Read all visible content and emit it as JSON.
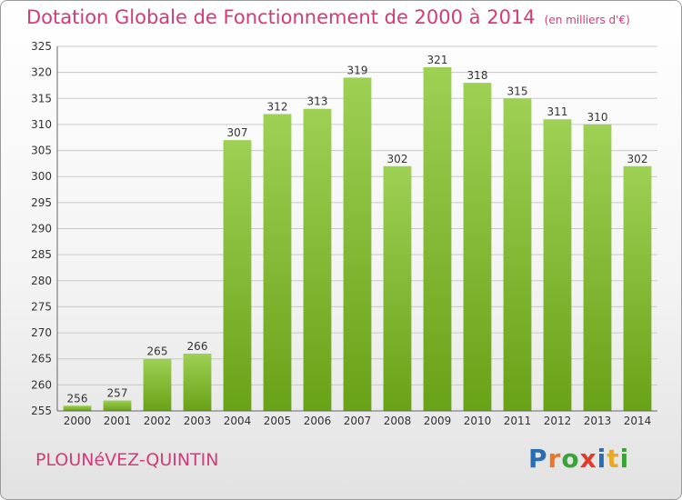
{
  "header": {
    "title": "Dotation Globale de Fonctionnement de 2000 à 2014",
    "unit": "(en milliers d'€)"
  },
  "footer": {
    "commune": "PLOUNéVEZ-QUINTIN",
    "logo": {
      "letters": [
        "P",
        "r",
        "o",
        "x",
        "i",
        "t",
        "i"
      ],
      "colors": [
        "#2b6db3",
        "#e8772a",
        "#3aa335",
        "#e43a2a",
        "#2b6db3",
        "#e8a92a",
        "#3aa335"
      ]
    }
  },
  "colors": {
    "bar_top": "#9ed054",
    "bar_bottom": "#68a217",
    "grid": "#c9c9c9",
    "axis": "#666666",
    "text": "#333333",
    "title": "#d23a7a"
  },
  "chart_data": {
    "type": "bar",
    "title": "Dotation Globale de Fonctionnement de 2000 à 2014",
    "xlabel": "",
    "ylabel": "",
    "categories": [
      "2000",
      "2001",
      "2002",
      "2003",
      "2004",
      "2005",
      "2006",
      "2007",
      "2008",
      "2009",
      "2010",
      "2011",
      "2012",
      "2013",
      "2014"
    ],
    "values": [
      256,
      257,
      265,
      266,
      307,
      312,
      313,
      319,
      302,
      321,
      318,
      315,
      311,
      310,
      302
    ],
    "ylim": [
      255,
      325
    ],
    "yticks": [
      255,
      260,
      265,
      270,
      275,
      280,
      285,
      290,
      295,
      300,
      305,
      310,
      315,
      320,
      325
    ],
    "grid": true
  }
}
